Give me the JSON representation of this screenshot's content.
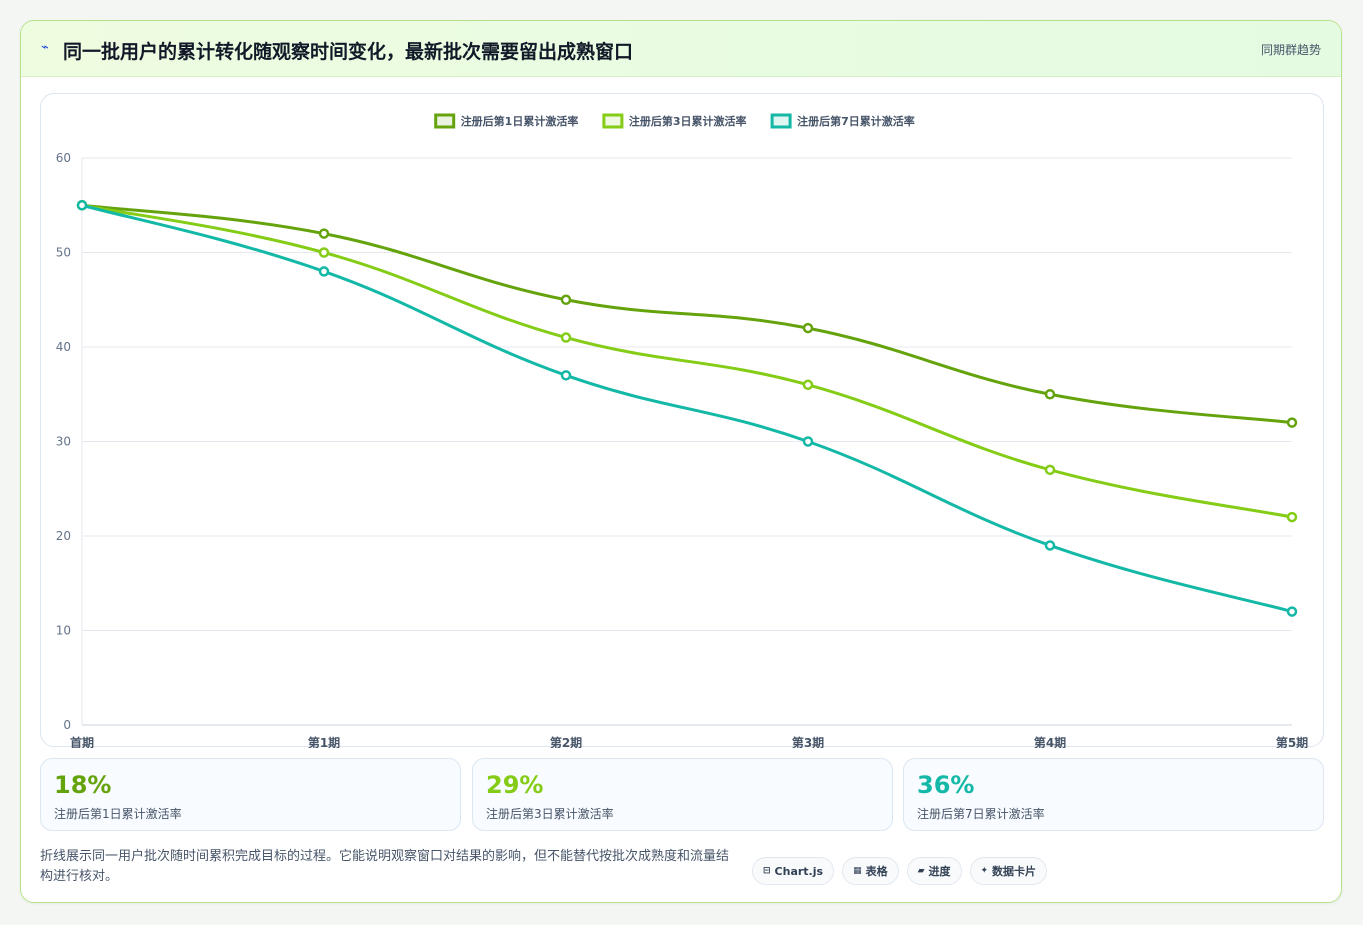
{
  "header": {
    "icon": "trend-icon",
    "title": "同一批用户的累计转化随观察时间变化，最新批次需要留出成熟窗口",
    "tag": "同期群趋势"
  },
  "colors": {
    "accent": "#65a30d",
    "series1": "#65a30d",
    "series2": "#84cc16",
    "series3": "#14b8a6"
  },
  "chart_data": {
    "type": "line",
    "categories": [
      "首期",
      "第1期",
      "第2期",
      "第3期",
      "第4期",
      "第5期"
    ],
    "series": [
      {
        "name": "注册后第1日累计激活率",
        "color": "#65a30d",
        "values": [
          55,
          52,
          45,
          42,
          35,
          32
        ]
      },
      {
        "name": "注册后第3日累计激活率",
        "color": "#84cc16",
        "values": [
          55,
          50,
          41,
          36,
          27,
          22
        ]
      },
      {
        "name": "注册后第7日累计激活率",
        "color": "#14b8a6",
        "values": [
          55,
          48,
          37,
          30,
          19,
          12
        ]
      }
    ],
    "ylim": [
      0,
      60
    ],
    "yticks": [
      0,
      10,
      20,
      30,
      40,
      50,
      60
    ],
    "grid": true,
    "legend": "top-center",
    "title": "",
    "xlabel": "",
    "ylabel": ""
  },
  "stats": [
    {
      "value": "18%",
      "label": "注册后第1日累计激活率",
      "color": "#65a30d"
    },
    {
      "value": "29%",
      "label": "注册后第3日累计激活率",
      "color": "#84cc16"
    },
    {
      "value": "36%",
      "label": "注册后第7日累计激活率",
      "color": "#14b8a6"
    }
  ],
  "footnote": "折线展示同一用户批次随时间累积完成目标的过程。它能说明观察窗口对结果的影响，但不能替代按批次成熟度和流量结构进行核对。",
  "tags": [
    {
      "icon": "⊟",
      "icon_name": "chart-icon",
      "label": "Chart.js"
    },
    {
      "icon": "▦",
      "icon_name": "table-icon",
      "label": "表格"
    },
    {
      "icon": "▰",
      "icon_name": "progress-icon",
      "label": "进度"
    },
    {
      "icon": "✦",
      "icon_name": "card-icon",
      "label": "数据卡片"
    }
  ]
}
